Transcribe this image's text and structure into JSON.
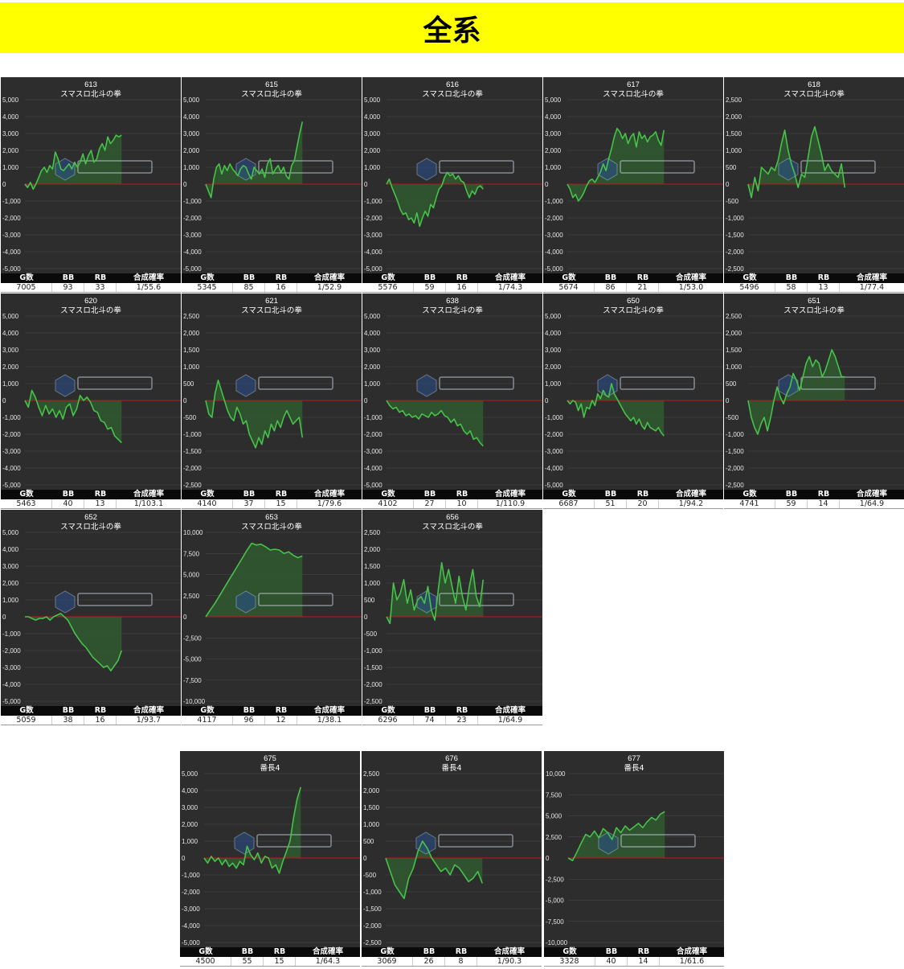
{
  "title": "全系",
  "stat_headers": [
    "G数",
    "BB",
    "RB",
    "合成確率"
  ],
  "colors": {
    "banner": "#ffff00",
    "panel_bg": "#2d2d2d",
    "line": "#47c24a",
    "fill": "#2f5a2f",
    "zero_line": "#c0171a",
    "grid": "#4a4a4a"
  },
  "chart_data": [
    {
      "type": "area",
      "number": "613",
      "name": "スマスロ北斗の拳",
      "ylim": [
        -5000,
        5000
      ],
      "y_ticks": [
        5000,
        4000,
        3000,
        2000,
        1000,
        0,
        -1000,
        -2000,
        -3000,
        -4000,
        -5000
      ],
      "y_tick_labels": [
        "5,000",
        "4,000",
        "3,000",
        "2,000",
        "1,000",
        "0",
        "-1,000",
        "-2,000",
        "-3,000",
        "-4,000",
        "-5,000"
      ],
      "values": [
        0,
        -200,
        100,
        -300,
        0,
        400,
        800,
        1000,
        700,
        1100,
        900,
        1900,
        1500,
        900,
        800,
        1000,
        1200,
        900,
        1300,
        1000,
        1300,
        1800,
        1200,
        1700,
        2000,
        1300,
        1500,
        2100,
        2400,
        2000,
        2800,
        2400,
        2600,
        2900,
        2800,
        2900
      ],
      "stats": {
        "g": "7005",
        "bb": "93",
        "rb": "33",
        "rate": "1/55.6"
      }
    },
    {
      "type": "area",
      "number": "615",
      "name": "スマスロ北斗の拳",
      "ylim": [
        -5000,
        5000
      ],
      "y_ticks": [
        5000,
        4000,
        3000,
        2000,
        1000,
        0,
        -1000,
        -2000,
        -3000,
        -4000,
        -5000
      ],
      "y_tick_labels": [
        "5,000",
        "4,000",
        "3,000",
        "2,000",
        "1,000",
        "0",
        "-1,000",
        "-2,000",
        "-3,000",
        "-4,000",
        "-5,000"
      ],
      "values": [
        0,
        -400,
        -800,
        300,
        1000,
        1200,
        600,
        1100,
        800,
        1200,
        900,
        700,
        500,
        900,
        1100,
        1000,
        600,
        300,
        1000,
        800,
        600,
        900,
        400,
        1200,
        1500,
        600,
        900,
        1100,
        700,
        1000,
        500,
        300,
        1100,
        1400,
        2200,
        3000,
        3700
      ],
      "stats": {
        "g": "5345",
        "bb": "85",
        "rb": "16",
        "rate": "1/52.9"
      }
    },
    {
      "type": "area",
      "number": "616",
      "name": "スマスロ北斗の拳",
      "ylim": [
        -5000,
        5000
      ],
      "y_ticks": [
        5000,
        4000,
        3000,
        2000,
        1000,
        0,
        -1000,
        -2000,
        -3000,
        -4000,
        -5000
      ],
      "y_tick_labels": [
        "5,000",
        "4,000",
        "3,000",
        "2,000",
        "1,000",
        "0",
        "-1,000",
        "-2,000",
        "-3,000",
        "-4,000",
        "-5,000"
      ],
      "values": [
        0,
        300,
        -200,
        -600,
        -1000,
        -1500,
        -1800,
        -1700,
        -2100,
        -2000,
        -2300,
        -1700,
        -2500,
        -2000,
        -1600,
        -1900,
        -1200,
        -1400,
        -800,
        -300,
        -100,
        400,
        700,
        500,
        600,
        300,
        500,
        200,
        100,
        -400,
        -800,
        -400,
        -600,
        -200,
        -100,
        -300
      ],
      "stats": {
        "g": "5576",
        "bb": "59",
        "rb": "16",
        "rate": "1/74.3"
      }
    },
    {
      "type": "area",
      "number": "617",
      "name": "スマスロ北斗の拳",
      "ylim": [
        -5000,
        5000
      ],
      "y_ticks": [
        5000,
        4000,
        3000,
        2000,
        1000,
        0,
        -1000,
        -2000,
        -3000,
        -4000,
        -5000
      ],
      "y_tick_labels": [
        "5,000",
        "4,000",
        "3,000",
        "2,000",
        "1,000",
        "0",
        "-1,000",
        "-2,000",
        "-3,000",
        "-4,000",
        "-5,000"
      ],
      "values": [
        0,
        -300,
        -800,
        -600,
        -1000,
        -800,
        -500,
        -100,
        200,
        300,
        100,
        400,
        700,
        1200,
        800,
        1500,
        2100,
        2800,
        3300,
        3100,
        2700,
        3000,
        2400,
        2800,
        3000,
        2200,
        3100,
        2700,
        2900,
        2500,
        2800,
        2900,
        3100,
        2600,
        2300,
        3200
      ],
      "stats": {
        "g": "5674",
        "bb": "86",
        "rb": "21",
        "rate": "1/53.0"
      }
    },
    {
      "type": "area",
      "number": "618",
      "name": "スマスロ北斗の拳",
      "ylim": [
        -2500,
        2500
      ],
      "y_ticks": [
        2500,
        2000,
        1500,
        1000,
        500,
        0,
        -500,
        -1000,
        -1500,
        -2000,
        -2500
      ],
      "y_tick_labels": [
        "2,500",
        "2,000",
        "1,500",
        "1,000",
        "500",
        "0",
        "-500",
        "-1,000",
        "-1,500",
        "-2,000",
        "-2,500"
      ],
      "values": [
        0,
        -400,
        200,
        -200,
        500,
        400,
        300,
        500,
        400,
        700,
        1200,
        1600,
        1000,
        600,
        300,
        -100,
        300,
        200,
        800,
        1400,
        1700,
        1300,
        900,
        400,
        600,
        400,
        300,
        200,
        600,
        -100
      ],
      "stats": {
        "g": "5496",
        "bb": "58",
        "rb": "13",
        "rate": "1/77.4"
      }
    },
    {
      "type": "area",
      "number": "620",
      "name": "スマスロ北斗の拳",
      "ylim": [
        -5000,
        5000
      ],
      "y_ticks": [
        5000,
        4000,
        3000,
        2000,
        1000,
        0,
        -1000,
        -2000,
        -3000,
        -4000,
        -5000
      ],
      "y_tick_labels": [
        "5,000",
        "4,000",
        "3,000",
        "2,000",
        "1,000",
        "0",
        "-1,000",
        "-2,000",
        "-3,000",
        "-4,000",
        "-5,000"
      ],
      "values": [
        0,
        -400,
        600,
        200,
        -400,
        -900,
        -300,
        -800,
        -500,
        -1000,
        -600,
        -1100,
        -400,
        -200,
        -900,
        -500,
        300,
        0,
        200,
        -100,
        -600,
        -700,
        -1200,
        -1300,
        -1700,
        -1600,
        -2100,
        -2300,
        -2500
      ],
      "stats": {
        "g": "5463",
        "bb": "40",
        "rb": "13",
        "rate": "1/103.1"
      }
    },
    {
      "type": "area",
      "number": "621",
      "name": "スマスロ北斗の拳",
      "ylim": [
        -2500,
        2500
      ],
      "y_ticks": [
        2500,
        2000,
        1500,
        1000,
        500,
        0,
        -500,
        -1000,
        -1500,
        -2000,
        -2500
      ],
      "y_tick_labels": [
        "2,500",
        "2,000",
        "1,500",
        "1,000",
        "500",
        "0",
        "-500",
        "-1,000",
        "-1,500",
        "-2,000",
        "-2,500"
      ],
      "values": [
        0,
        -400,
        -500,
        200,
        600,
        300,
        0,
        -300,
        -500,
        -600,
        -200,
        -400,
        -700,
        -600,
        -1000,
        -1200,
        -1400,
        -1100,
        -1300,
        -900,
        -1100,
        -700,
        -900,
        -600,
        -800,
        -500,
        -300,
        -500,
        -700,
        -600,
        -500,
        -1100
      ],
      "stats": {
        "g": "4140",
        "bb": "37",
        "rb": "15",
        "rate": "1/79.6"
      }
    },
    {
      "type": "area",
      "number": "638",
      "name": "スマスロ北斗の拳",
      "ylim": [
        -5000,
        5000
      ],
      "y_ticks": [
        5000,
        4000,
        3000,
        2000,
        1000,
        0,
        -1000,
        -2000,
        -3000,
        -4000,
        -5000
      ],
      "y_tick_labels": [
        "5,000",
        "4,000",
        "3,000",
        "2,000",
        "1,000",
        "0",
        "-1,000",
        "-2,000",
        "-3,000",
        "-4,000",
        "-5,000"
      ],
      "values": [
        0,
        -300,
        -500,
        -400,
        -700,
        -600,
        -900,
        -800,
        -1000,
        -900,
        -1100,
        -800,
        -900,
        -1000,
        -700,
        -900,
        -800,
        -600,
        -900,
        -1000,
        -1300,
        -1100,
        -1500,
        -1400,
        -1800,
        -2000,
        -1800,
        -2300,
        -2200,
        -2500,
        -2700
      ],
      "stats": {
        "g": "4102",
        "bb": "27",
        "rb": "10",
        "rate": "1/110.9"
      }
    },
    {
      "type": "area",
      "number": "650",
      "name": "スマスロ北斗の拳",
      "ylim": [
        -5000,
        5000
      ],
      "y_ticks": [
        5000,
        4000,
        3000,
        2000,
        1000,
        0,
        -1000,
        -2000,
        -3000,
        -4000,
        -5000
      ],
      "y_tick_labels": [
        "5,000",
        "4,000",
        "3,000",
        "2,000",
        "1,000",
        "0",
        "-1,000",
        "-2,000",
        "-3,000",
        "-4,000",
        "-5,000"
      ],
      "values": [
        0,
        -200,
        0,
        -100,
        -600,
        -200,
        -1000,
        -400,
        -500,
        0,
        -300,
        400,
        100,
        600,
        300,
        200,
        1000,
        400,
        100,
        -200,
        -500,
        -800,
        -1000,
        -1200,
        -1000,
        -1400,
        -1100,
        -1500,
        -1700,
        -1300,
        -1600,
        -1700,
        -1800,
        -1600,
        -1900,
        -2100
      ],
      "stats": {
        "g": "6687",
        "bb": "51",
        "rb": "20",
        "rate": "1/94.2"
      }
    },
    {
      "type": "area",
      "number": "651",
      "name": "スマスロ北斗の拳",
      "ylim": [
        -2500,
        2500
      ],
      "y_ticks": [
        2500,
        2000,
        1500,
        1000,
        500,
        0,
        -500,
        -1000,
        -1500,
        -2000,
        -2500
      ],
      "y_tick_labels": [
        "2,500",
        "2,000",
        "1,500",
        "1,000",
        "500",
        "0",
        "-500",
        "-1,000",
        "-1,500",
        "-2,000",
        "-2,500"
      ],
      "values": [
        0,
        -500,
        -800,
        -1000,
        -700,
        -500,
        -900,
        -500,
        0,
        400,
        100,
        -100,
        200,
        400,
        800,
        600,
        300,
        700,
        1100,
        1300,
        1000,
        1200,
        1100,
        700,
        900,
        1200,
        1500,
        1300,
        1000,
        700,
        700
      ],
      "stats": {
        "g": "4741",
        "bb": "59",
        "rb": "14",
        "rate": "1/64.9"
      }
    },
    {
      "type": "area",
      "number": "652",
      "name": "スマスロ北斗の拳",
      "ylim": [
        -5000,
        5000
      ],
      "y_ticks": [
        5000,
        4000,
        3000,
        2000,
        1000,
        0,
        -1000,
        -2000,
        -3000,
        -4000,
        -5000
      ],
      "y_tick_labels": [
        "5,000",
        "4,000",
        "3,000",
        "2,000",
        "1,000",
        "0",
        "-1,000",
        "-2,000",
        "-3,000",
        "-4,000",
        "-5,000"
      ],
      "values": [
        0,
        0,
        -100,
        -200,
        -100,
        -100,
        0,
        -200,
        0,
        100,
        200,
        0,
        -200,
        -600,
        -1000,
        -1300,
        -1600,
        -1800,
        -2100,
        -2400,
        -2600,
        -2800,
        -3000,
        -2900,
        -3200,
        -2900,
        -2600,
        -2000
      ],
      "stats": {
        "g": "5059",
        "bb": "38",
        "rb": "16",
        "rate": "1/93.7"
      }
    },
    {
      "type": "area",
      "number": "653",
      "name": "スマスロ北斗の拳",
      "ylim": [
        -10000,
        10000
      ],
      "y_ticks": [
        10000,
        7500,
        5000,
        2500,
        0,
        -2500,
        -5000,
        -7500,
        -10000
      ],
      "y_tick_labels": [
        "10,000",
        "7,500",
        "5,000",
        "2,500",
        "0",
        "-2,500",
        "-5,000",
        "-7,500",
        "-10,000"
      ],
      "values": [
        0,
        800,
        1600,
        2500,
        3400,
        4300,
        5200,
        6100,
        7000,
        7900,
        8700,
        8500,
        8600,
        8300,
        7900,
        8000,
        7900,
        7500,
        7700,
        7300,
        7000,
        7200
      ],
      "stats": {
        "g": "4117",
        "bb": "96",
        "rb": "12",
        "rate": "1/38.1"
      }
    },
    {
      "type": "area",
      "number": "656",
      "name": "スマスロ北斗の拳",
      "ylim": [
        -2500,
        2500
      ],
      "y_ticks": [
        2500,
        2000,
        1500,
        1000,
        500,
        0,
        -500,
        -1000,
        -1500,
        -2000,
        -2500
      ],
      "y_tick_labels": [
        "2,500",
        "2,000",
        "1,500",
        "1,000",
        "500",
        "0",
        "-500",
        "-1,000",
        "-1,500",
        "-2,000",
        "-2,500"
      ],
      "values": [
        0,
        -200,
        1000,
        500,
        700,
        1100,
        400,
        800,
        200,
        500,
        600,
        400,
        900,
        200,
        -100,
        800,
        1600,
        1000,
        1400,
        900,
        400,
        1200,
        600,
        200,
        900,
        1400,
        600,
        300,
        1100
      ],
      "stats": {
        "g": "6296",
        "bb": "74",
        "rb": "23",
        "rate": "1/64.9"
      }
    },
    {
      "type": "area",
      "number": "675",
      "name": "番長4",
      "ylim": [
        -5000,
        5000
      ],
      "y_ticks": [
        5000,
        4000,
        3000,
        2000,
        1000,
        0,
        -1000,
        -2000,
        -3000,
        -4000,
        -5000
      ],
      "y_tick_labels": [
        "5,000",
        "4,000",
        "3,000",
        "2,000",
        "1,000",
        "0",
        "-1,000",
        "-2,000",
        "-3,000",
        "-4,000",
        "-5,000"
      ],
      "values": [
        0,
        -300,
        100,
        -200,
        0,
        -400,
        -100,
        -500,
        -300,
        -600,
        -200,
        -400,
        700,
        200,
        -100,
        300,
        -300,
        100,
        0,
        -600,
        -400,
        -900,
        -200,
        400,
        1000,
        2400,
        3500,
        4200
      ],
      "stats": {
        "g": "4500",
        "bb": "55",
        "rb": "15",
        "rate": "1/64.3"
      }
    },
    {
      "type": "area",
      "number": "676",
      "name": "番長4",
      "ylim": [
        -2500,
        2500
      ],
      "y_ticks": [
        2500,
        2000,
        1500,
        1000,
        500,
        0,
        -500,
        -1000,
        -1500,
        -2000,
        -2500
      ],
      "y_tick_labels": [
        "2,500",
        "2,000",
        "1,500",
        "1,000",
        "500",
        "0",
        "-500",
        "-1,000",
        "-1,500",
        "-2,000",
        "-2,500"
      ],
      "values": [
        0,
        -400,
        -800,
        -1000,
        -1200,
        -600,
        -300,
        200,
        500,
        300,
        0,
        -200,
        -400,
        -300,
        -500,
        -200,
        -300,
        -500,
        -700,
        -600,
        -400,
        -750
      ],
      "stats": {
        "g": "3069",
        "bb": "26",
        "rb": "8",
        "rate": "1/90.3"
      }
    },
    {
      "type": "area",
      "number": "677",
      "name": "番長4",
      "ylim": [
        -10000,
        10000
      ],
      "y_ticks": [
        10000,
        7500,
        5000,
        2500,
        0,
        -2500,
        -5000,
        -7500,
        -10000
      ],
      "y_tick_labels": [
        "10,000",
        "7,500",
        "5,000",
        "2,500",
        "0",
        "-2,500",
        "-5,000",
        "-7,500",
        "-10,000"
      ],
      "values": [
        0,
        -300,
        700,
        1800,
        2800,
        2500,
        3200,
        2400,
        3500,
        3000,
        2200,
        3600,
        3000,
        3800,
        3300,
        3700,
        4100,
        3600,
        4300,
        4800,
        4500,
        5200,
        5500
      ],
      "stats": {
        "g": "3328",
        "bb": "40",
        "rb": "14",
        "rate": "1/61.6"
      }
    }
  ]
}
